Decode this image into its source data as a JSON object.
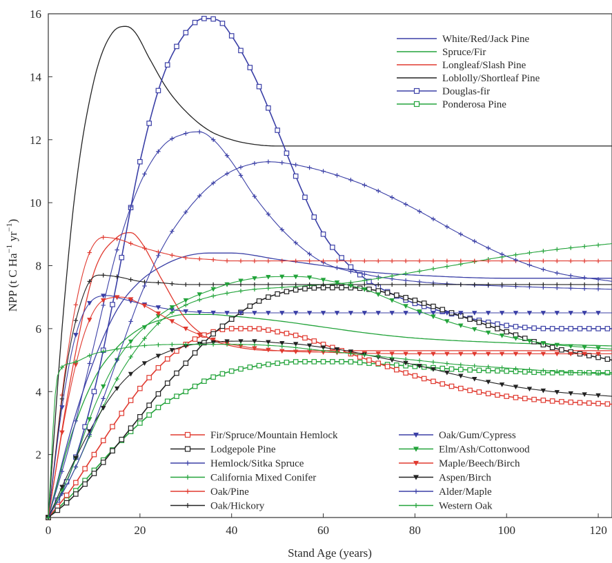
{
  "chart_data": {
    "type": "line",
    "title": "",
    "xlabel": "Stand Age (years)",
    "ylabel_main": "NPP (t C Ha",
    "ylabel_sup1": "−1",
    "ylabel_mid": " yr",
    "ylabel_sup2": "−1",
    "ylabel_end": ")",
    "xlim": [
      0,
      123
    ],
    "ylim": [
      0,
      16
    ],
    "xticks": [
      0,
      20,
      40,
      60,
      80,
      100,
      120
    ],
    "yticks": [
      2,
      4,
      6,
      8,
      10,
      12,
      14,
      16
    ],
    "xtick_labels": [
      "0",
      "20",
      "40",
      "60",
      "80",
      "100",
      "120"
    ],
    "ytick_labels": [
      "2",
      "4",
      "6",
      "8",
      "10",
      "12",
      "14",
      "16"
    ],
    "grid": false,
    "legend_top_position": "top-right",
    "legend_bottom_position": "bottom-center, two columns",
    "series": [
      {
        "name": "White/Red/Jack Pine",
        "legend": "top",
        "color": "#3a3fa6",
        "marker": "none",
        "x": [
          0,
          5,
          10,
          15,
          20,
          25,
          30,
          35,
          40,
          50,
          60,
          70,
          80,
          100,
          123
        ],
        "y": [
          0,
          2.8,
          5.0,
          6.6,
          7.5,
          8.0,
          8.3,
          8.4,
          8.4,
          8.2,
          8.0,
          7.8,
          7.7,
          7.6,
          7.6
        ]
      },
      {
        "name": "Spruce/Fir",
        "legend": "top",
        "color": "#22a33a",
        "marker": "none",
        "x": [
          0,
          5,
          10,
          15,
          20,
          25,
          30,
          35,
          40,
          50,
          60,
          70,
          80,
          100,
          123
        ],
        "y": [
          0,
          2.6,
          4.4,
          5.4,
          6.0,
          6.3,
          6.45,
          6.45,
          6.4,
          6.25,
          6.05,
          5.85,
          5.7,
          5.55,
          5.45
        ]
      },
      {
        "name": "Longleaf/Slash Pine",
        "legend": "top",
        "color": "#e0392f",
        "marker": "none",
        "x": [
          0,
          5,
          10,
          15,
          18,
          20,
          25,
          30,
          35,
          40,
          50,
          60,
          70,
          80,
          100,
          123
        ],
        "y": [
          0,
          4.5,
          7.8,
          8.9,
          9.05,
          8.8,
          7.5,
          6.3,
          5.7,
          5.45,
          5.3,
          5.3,
          5.3,
          5.3,
          5.3,
          5.3
        ]
      },
      {
        "name": "Loblolly/Shortleaf Pine",
        "legend": "top",
        "color": "#222222",
        "marker": "none",
        "x": [
          0,
          3,
          6,
          10,
          14,
          17,
          19,
          22,
          26,
          30,
          35,
          40,
          45,
          50,
          60,
          80,
          100,
          123
        ],
        "y": [
          0,
          6.0,
          10.5,
          13.9,
          15.4,
          15.6,
          15.4,
          14.6,
          13.6,
          12.9,
          12.3,
          12.0,
          11.85,
          11.8,
          11.8,
          11.8,
          11.8,
          11.8
        ]
      },
      {
        "name": "Douglas-fir",
        "legend": "top",
        "color": "#3a3fa6",
        "marker": "square",
        "x": [
          0,
          5,
          10,
          15,
          20,
          25,
          30,
          34,
          37,
          40,
          45,
          50,
          55,
          60,
          65,
          70,
          75,
          80,
          90,
          100,
          110,
          123
        ],
        "y": [
          0,
          1.5,
          4.0,
          7.5,
          11.3,
          14.0,
          15.4,
          15.85,
          15.8,
          15.3,
          14.0,
          12.3,
          10.5,
          9.0,
          8.1,
          7.5,
          7.1,
          6.8,
          6.4,
          6.1,
          6.0,
          6.0
        ]
      },
      {
        "name": "Ponderosa Pine",
        "legend": "top",
        "color": "#22a33a",
        "marker": "square",
        "x": [
          0,
          5,
          10,
          15,
          20,
          25,
          30,
          35,
          40,
          45,
          50,
          55,
          60,
          65,
          70,
          80,
          90,
          100,
          110,
          123
        ],
        "y": [
          0,
          0.7,
          1.5,
          2.3,
          3.0,
          3.6,
          4.0,
          4.4,
          4.65,
          4.8,
          4.9,
          4.95,
          4.95,
          4.95,
          4.9,
          4.8,
          4.7,
          4.65,
          4.6,
          4.6
        ]
      },
      {
        "name": "Fir/Spruce/Mountain Hemlock",
        "legend": "bottom",
        "color": "#e0392f",
        "marker": "square",
        "x": [
          0,
          5,
          10,
          15,
          20,
          25,
          30,
          35,
          40,
          45,
          50,
          55,
          60,
          70,
          80,
          90,
          100,
          110,
          123
        ],
        "y": [
          0,
          0.9,
          2.0,
          3.1,
          4.1,
          4.9,
          5.5,
          5.85,
          6.0,
          6.0,
          5.9,
          5.75,
          5.5,
          5.0,
          4.5,
          4.1,
          3.85,
          3.7,
          3.6
        ]
      },
      {
        "name": "Lodgepole Pine",
        "legend": "bottom",
        "color": "#222222",
        "marker": "square",
        "x": [
          0,
          5,
          10,
          15,
          20,
          25,
          30,
          35,
          40,
          45,
          50,
          55,
          60,
          65,
          70,
          75,
          80,
          90,
          100,
          110,
          123
        ],
        "y": [
          0,
          0.6,
          1.4,
          2.3,
          3.2,
          4.1,
          4.9,
          5.7,
          6.3,
          6.8,
          7.1,
          7.25,
          7.3,
          7.3,
          7.25,
          7.1,
          6.9,
          6.4,
          5.9,
          5.4,
          5.0
        ]
      },
      {
        "name": "Hemlock/Sitka Spruce",
        "legend": "bottom",
        "color": "#3a3fa6",
        "marker": "plus",
        "x": [
          0,
          5,
          10,
          15,
          20,
          25,
          30,
          33,
          36,
          40,
          45,
          50,
          55,
          60,
          70,
          80,
          90,
          100,
          110,
          123
        ],
        "y": [
          0,
          2.5,
          5.5,
          8.5,
          10.6,
          11.8,
          12.2,
          12.25,
          12.0,
          11.3,
          10.2,
          9.3,
          8.6,
          8.1,
          7.7,
          7.5,
          7.4,
          7.35,
          7.3,
          7.25
        ]
      },
      {
        "name": "California Mixed Conifer",
        "legend": "bottom",
        "color": "#22a33a",
        "marker": "plus",
        "x": [
          0,
          5,
          10,
          15,
          20,
          25,
          30,
          35,
          40,
          45,
          50,
          55,
          60,
          65,
          70,
          80,
          90,
          100,
          110,
          123
        ],
        "y": [
          0,
          1.3,
          2.9,
          4.4,
          5.5,
          6.3,
          6.75,
          7.0,
          7.15,
          7.25,
          7.3,
          7.35,
          7.4,
          7.45,
          7.55,
          7.8,
          8.05,
          8.3,
          8.5,
          8.7
        ]
      },
      {
        "name": "Oak/Pine",
        "legend": "bottom",
        "color": "#e0392f",
        "marker": "plus",
        "x": [
          0,
          4,
          8,
          12,
          15,
          20,
          25,
          30,
          35,
          40,
          50,
          60,
          80,
          100,
          123
        ],
        "y": [
          0,
          5.0,
          8.0,
          8.9,
          8.85,
          8.6,
          8.4,
          8.25,
          8.2,
          8.15,
          8.15,
          8.15,
          8.15,
          8.15,
          8.15
        ]
      },
      {
        "name": "Oak/Hickory",
        "legend": "bottom",
        "color": "#222222",
        "marker": "plus",
        "x": [
          0,
          4,
          8,
          11,
          15,
          20,
          25,
          30,
          35,
          40,
          50,
          60,
          80,
          100,
          123
        ],
        "y": [
          0,
          4.8,
          7.2,
          7.7,
          7.65,
          7.5,
          7.45,
          7.4,
          7.4,
          7.4,
          7.4,
          7.4,
          7.4,
          7.4,
          7.4
        ]
      },
      {
        "name": "Oak/Gum/Cypress",
        "legend": "bottom",
        "color": "#3a3fa6",
        "marker": "triangle-down",
        "x": [
          0,
          3,
          6,
          10,
          13,
          16,
          20,
          25,
          30,
          40,
          50,
          60,
          80,
          100,
          123
        ],
        "y": [
          0,
          3.5,
          5.8,
          6.95,
          7.05,
          6.95,
          6.8,
          6.65,
          6.55,
          6.5,
          6.5,
          6.5,
          6.5,
          6.5,
          6.5
        ]
      },
      {
        "name": "Elm/Ash/Cottonwood",
        "legend": "bottom",
        "color": "#22a33a",
        "marker": "triangle-down",
        "x": [
          0,
          5,
          10,
          15,
          20,
          25,
          30,
          35,
          40,
          45,
          50,
          55,
          60,
          65,
          70,
          75,
          80,
          90,
          100,
          110,
          123
        ],
        "y": [
          0,
          1.5,
          3.5,
          5.0,
          5.9,
          6.5,
          6.9,
          7.2,
          7.45,
          7.6,
          7.65,
          7.65,
          7.55,
          7.4,
          7.2,
          6.9,
          6.6,
          6.1,
          5.75,
          5.5,
          5.35
        ]
      },
      {
        "name": "Maple/Beech/Birch",
        "legend": "bottom",
        "color": "#e0392f",
        "marker": "triangle-down",
        "x": [
          0,
          4,
          8,
          12,
          16,
          20,
          25,
          30,
          35,
          40,
          50,
          60,
          80,
          100,
          123
        ],
        "y": [
          0,
          3.5,
          5.9,
          6.9,
          7.0,
          6.8,
          6.4,
          6.0,
          5.7,
          5.5,
          5.3,
          5.25,
          5.2,
          5.2,
          5.2
        ]
      },
      {
        "name": "Aspen/Birch",
        "legend": "bottom",
        "color": "#222222",
        "marker": "triangle-down",
        "x": [
          0,
          5,
          10,
          15,
          20,
          25,
          30,
          35,
          40,
          45,
          50,
          55,
          60,
          65,
          70,
          80,
          90,
          100,
          110,
          123
        ],
        "y": [
          0,
          1.6,
          3.0,
          4.1,
          4.8,
          5.2,
          5.45,
          5.55,
          5.6,
          5.6,
          5.55,
          5.5,
          5.4,
          5.3,
          5.15,
          4.85,
          4.5,
          4.2,
          4.0,
          3.85
        ]
      },
      {
        "name": "Alder/Maple",
        "legend": "bottom",
        "color": "#3a3fa6",
        "marker": "plus",
        "x": [
          0,
          5,
          10,
          15,
          20,
          25,
          30,
          35,
          40,
          45,
          48,
          52,
          60,
          70,
          80,
          90,
          100,
          110,
          123
        ],
        "y": [
          0,
          1.3,
          3.0,
          5.0,
          7.0,
          8.6,
          9.7,
          10.5,
          11.0,
          11.25,
          11.3,
          11.25,
          11.0,
          10.5,
          9.8,
          9.0,
          8.3,
          7.8,
          7.5
        ]
      },
      {
        "name": "Western Oak",
        "legend": "bottom",
        "color": "#22a33a",
        "marker": "plus",
        "x": [
          0,
          2,
          5,
          10,
          15,
          20,
          30,
          40,
          50,
          60,
          70,
          80,
          90,
          100,
          110,
          123
        ],
        "y": [
          0,
          4.5,
          4.9,
          5.2,
          5.35,
          5.45,
          5.5,
          5.5,
          5.45,
          5.3,
          5.15,
          5.0,
          4.85,
          4.75,
          4.65,
          4.55
        ]
      }
    ]
  }
}
